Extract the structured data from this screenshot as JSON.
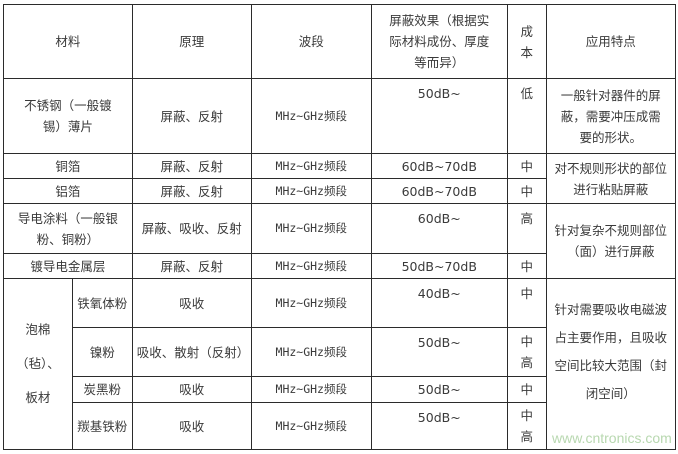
{
  "header": {
    "material": "材料",
    "principle": "原理",
    "band": "波段",
    "effect": "屏蔽效果（根据实际材料成份、厚度等而异）",
    "cost": "成本",
    "application": "应用特点"
  },
  "rows": [
    {
      "material": "不锈钢（一般镀锡）薄片",
      "principle": "屏蔽、反射",
      "band": "MHz~GHz频段",
      "effect": "50dB~",
      "cost": "低",
      "application": "一般针对器件的屏蔽，需要冲压成需要的形状。"
    },
    {
      "material": "铜箔",
      "principle": "屏蔽、反射",
      "band": "MHz~GHz频段",
      "effect": "60dB~70dB",
      "cost": "中",
      "application": "对不规则形状的部位进行粘贴屏蔽"
    },
    {
      "material": "铝箔",
      "principle": "屏蔽、反射",
      "band": "MHz~GHz频段",
      "effect": "60dB~70dB",
      "cost": "中"
    },
    {
      "material": "导电涂料（一般银粉、铜粉）",
      "principle": "屏蔽、吸收、反射",
      "band": "MHz~GHz频段",
      "effect": "60dB~",
      "cost": "高",
      "application": "针对复杂不规则部位（面）进行屏蔽"
    },
    {
      "material": "镀导电金属层",
      "principle": "屏蔽、反射",
      "band": "MHz~GHz频段",
      "effect": "50dB~70dB",
      "cost": "中"
    }
  ],
  "foam": {
    "group": "泡棉（毡）、板材",
    "application": "针对需要吸收电磁波占主要作用，且吸收空间比较大范围（封闭空间）",
    "rows": [
      {
        "material": "铁氧体粉",
        "principle": "吸收",
        "band": "MHz~GHz频段",
        "effect": "40dB~",
        "cost": "中"
      },
      {
        "material": "镍粉",
        "principle": "吸收、散射（反射）",
        "band": "MHz~GHz频段",
        "effect": "50dB~",
        "cost": "中高"
      },
      {
        "material": "炭黑粉",
        "principle": "吸收",
        "band": "MHz~GHz频段",
        "effect": "50dB~",
        "cost": "中"
      },
      {
        "material": "羰基铁粉",
        "principle": "吸收",
        "band": "MHz~GHz频段",
        "effect": "50dB~",
        "cost": "中高"
      }
    ]
  },
  "watermark": "www.cntronics.com"
}
